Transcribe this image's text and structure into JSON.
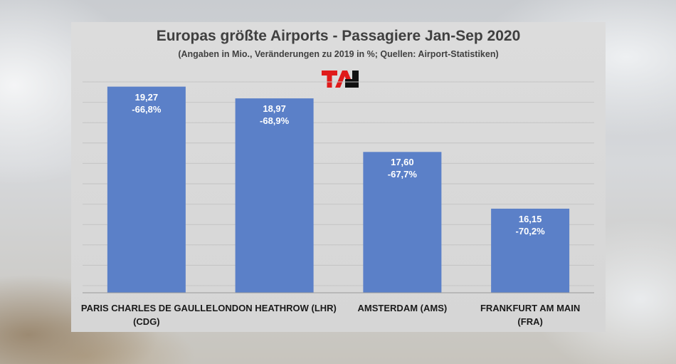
{
  "chart_data": {
    "type": "bar",
    "title": "Europas größte Airports - Passagiere Jan-Sep 2020",
    "subtitle": "(Angaben in Mio., Veränderungen zu 2019 in %; Quellen: Airport-Statistiken)",
    "categories": [
      [
        "PARIS CHARLES DE GAULLE",
        "(CDG)"
      ],
      [
        "LONDON HEATHROW (LHR)"
      ],
      [
        "AMSTERDAM (AMS)"
      ],
      [
        "FRANKFURT AM MAIN",
        "(FRA)"
      ]
    ],
    "values": [
      19.27,
      18.97,
      17.6,
      16.15
    ],
    "value_labels": [
      "19,27",
      "18,97",
      "17,60",
      "16,15"
    ],
    "change_labels": [
      "-66,8%",
      "-68,9%",
      "-67,7%",
      "-70,2%"
    ],
    "ylim": [
      14.0,
      19.5
    ],
    "grid": true,
    "bar_color": "#5b80c8"
  },
  "logo_text": "TAI"
}
